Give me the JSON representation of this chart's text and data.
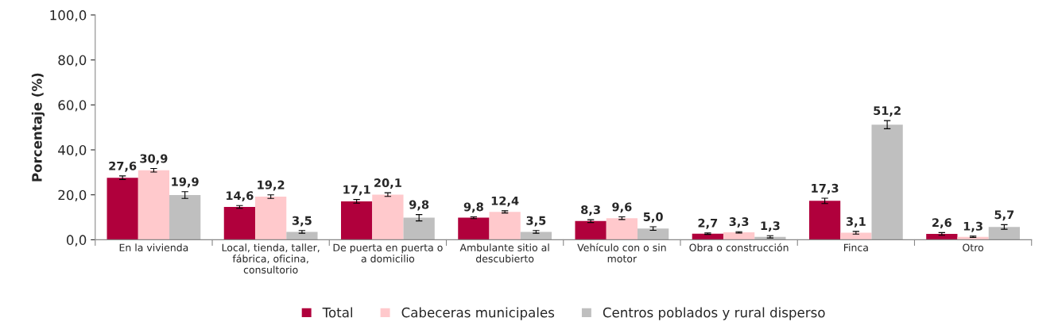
{
  "chart_data": {
    "type": "bar",
    "ylabel": "Porcentaje (%)",
    "categories": [
      "En la vivienda",
      "Local, tienda, taller,\nfábrica, oficina,\nconsultorio",
      "De puerta en puerta o\na domicilio",
      "Ambulante sitio al\ndescubierto",
      "Vehículo con o sin\nmotor",
      "Obra o construcción",
      "Finca",
      "Otro"
    ],
    "series": [
      {
        "name": "Total",
        "color": "#b0003c",
        "values": [
          27.6,
          14.6,
          17.1,
          9.8,
          8.3,
          2.7,
          17.3,
          2.6
        ],
        "errors": [
          0.8,
          0.6,
          0.8,
          0.4,
          0.6,
          0.3,
          1.2,
          0.6
        ],
        "value_labels": [
          "27,6",
          "14,6",
          "17,1",
          "9,8",
          "8,3",
          "2,7",
          "17,3",
          "2,6"
        ]
      },
      {
        "name": "Cabeceras municipales",
        "color": "#ffc9cc",
        "values": [
          30.9,
          19.2,
          20.1,
          12.4,
          9.6,
          3.3,
          3.1,
          1.3
        ],
        "errors": [
          0.8,
          0.8,
          0.8,
          0.5,
          0.6,
          0.3,
          0.6,
          0.3
        ],
        "value_labels": [
          "30,9",
          "19,2",
          "20,1",
          "12,4",
          "9,6",
          "3,3",
          "3,1",
          "1,3"
        ]
      },
      {
        "name": "Centros poblados y rural disperso",
        "color": "#bfbfbf",
        "values": [
          19.9,
          3.5,
          9.8,
          3.5,
          5.0,
          1.3,
          51.2,
          5.7
        ],
        "errors": [
          1.5,
          0.6,
          1.4,
          0.6,
          0.8,
          0.5,
          1.8,
          1.0
        ],
        "value_labels": [
          "19,9",
          "3,5",
          "9,8",
          "3,5",
          "5,0",
          "1,3",
          "51,2",
          "5,7"
        ]
      }
    ],
    "ylim": [
      0,
      100
    ],
    "yticks": [
      {
        "value": 0,
        "label": "0,0"
      },
      {
        "value": 20,
        "label": "20,0"
      },
      {
        "value": 40,
        "label": "40,0"
      },
      {
        "value": 60,
        "label": "60,0"
      },
      {
        "value": 80,
        "label": "80,0"
      },
      {
        "value": 100,
        "label": "100,0"
      }
    ],
    "grid": false,
    "legend": "bottom"
  }
}
